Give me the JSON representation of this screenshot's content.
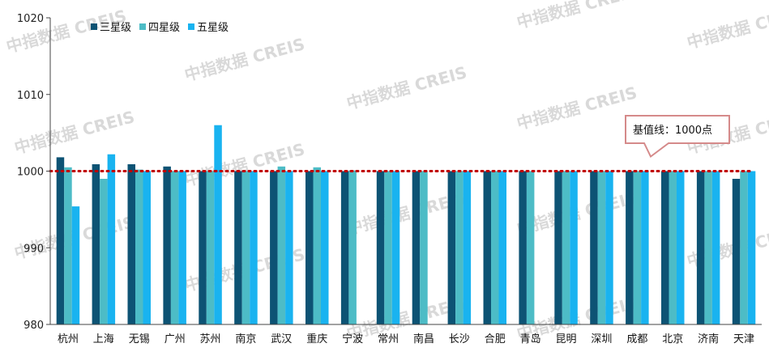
{
  "watermark": "中指数据 CREIS",
  "colors": {
    "三星级": "#0d5374",
    "四星级": "#4dbcc6",
    "五星级": "#19b3f0",
    "baseline": "#c00000",
    "callout_border": "#d58a8a"
  },
  "callout": {
    "text": "基值线：1000点"
  },
  "chart_data": {
    "type": "bar",
    "categories": [
      "杭州",
      "上海",
      "无锡",
      "广州",
      "苏州",
      "南京",
      "武汉",
      "重庆",
      "宁波",
      "常州",
      "南昌",
      "长沙",
      "合肥",
      "青岛",
      "昆明",
      "深圳",
      "成都",
      "北京",
      "济南",
      "天津"
    ],
    "series": [
      {
        "name": "三星级",
        "values": [
          1001.8,
          1000.9,
          1000.9,
          1000.6,
          1000,
          1000,
          1000,
          1000,
          1000,
          1000,
          1000,
          1000,
          1000,
          1000,
          1000,
          1000,
          1000,
          1000,
          1000,
          999.0
        ]
      },
      {
        "name": "四星级",
        "values": [
          1000.5,
          999.0,
          1000.2,
          1000,
          1000,
          1000,
          1000.6,
          1000.5,
          1000.1,
          1000,
          1000,
          1000,
          1000,
          1000,
          1000,
          1000,
          1000,
          1000,
          1000,
          1000
        ]
      },
      {
        "name": "五星级",
        "values": [
          995.4,
          1002.2,
          1000,
          1000,
          1006.0,
          1000,
          1000,
          1000,
          980,
          1000,
          980,
          1000,
          1000,
          980,
          1000,
          1000,
          1000,
          1000,
          1000,
          1000
        ]
      }
    ],
    "ylim": [
      980,
      1020
    ],
    "yticks": [
      980,
      990,
      1000,
      1010,
      1020
    ],
    "baseline": 1000,
    "legend_position": "top-left",
    "grid": false
  }
}
